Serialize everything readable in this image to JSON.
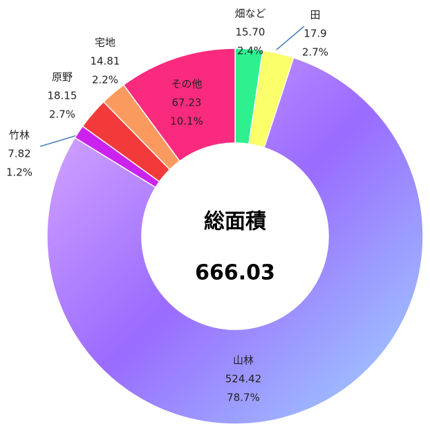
{
  "chart_data": {
    "type": "donut",
    "center_title": "総面積",
    "center_value": "666.03",
    "categories": [
      "畑など",
      "田",
      "山林",
      "竹林",
      "原野",
      "宅地",
      "その他"
    ],
    "values": [
      15.7,
      17.9,
      524.42,
      7.82,
      18.15,
      14.81,
      67.23
    ],
    "value_labels": [
      "15.70",
      "17.9",
      "524.42",
      "7.82",
      "18.15",
      "14.81",
      "67.23"
    ],
    "percent_labels": [
      "2.4%",
      "2.7%",
      "78.7%",
      "1.2%",
      "2.7%",
      "2.2%",
      "10.1%"
    ],
    "colors": [
      "#2ef08f",
      "#faff6a",
      "#a98bff",
      "#cc22ee",
      "#f23a3a",
      "#fb9a5e",
      "#fa2a7e"
    ]
  }
}
